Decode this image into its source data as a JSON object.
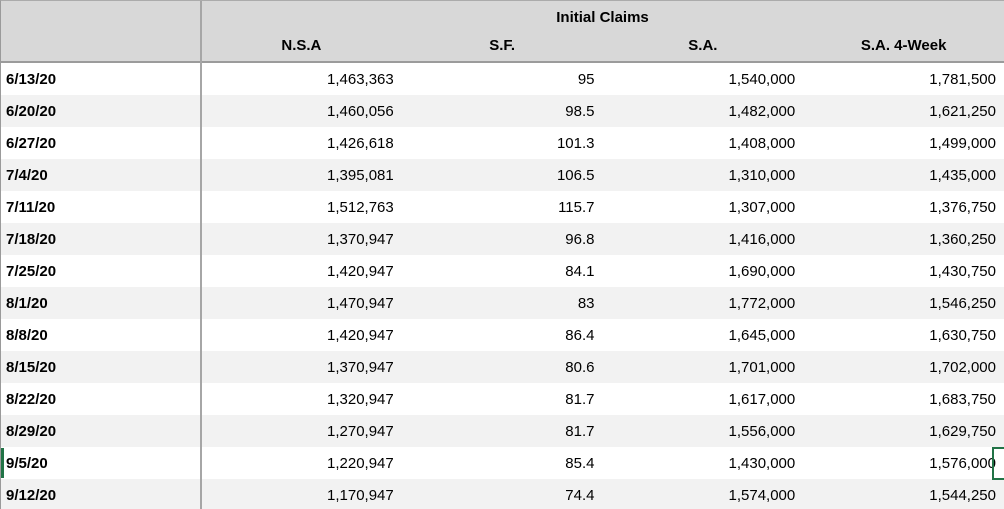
{
  "table": {
    "title": "Initial Claims",
    "date_column_header": "",
    "columns": [
      "N.S.A",
      "S.F.",
      "S.A.",
      "S.A. 4-Week"
    ],
    "rows": [
      {
        "date": "6/13/20",
        "nsa": "1,463,363",
        "sf": "95",
        "sa": "1,540,000",
        "sa4week": "1,781,500"
      },
      {
        "date": "6/20/20",
        "nsa": "1,460,056",
        "sf": "98.5",
        "sa": "1,482,000",
        "sa4week": "1,621,250"
      },
      {
        "date": "6/27/20",
        "nsa": "1,426,618",
        "sf": "101.3",
        "sa": "1,408,000",
        "sa4week": "1,499,000"
      },
      {
        "date": "7/4/20",
        "nsa": "1,395,081",
        "sf": "106.5",
        "sa": "1,310,000",
        "sa4week": "1,435,000"
      },
      {
        "date": "7/11/20",
        "nsa": "1,512,763",
        "sf": "115.7",
        "sa": "1,307,000",
        "sa4week": "1,376,750"
      },
      {
        "date": "7/18/20",
        "nsa": "1,370,947",
        "sf": "96.8",
        "sa": "1,416,000",
        "sa4week": "1,360,250"
      },
      {
        "date": "7/25/20",
        "nsa": "1,420,947",
        "sf": "84.1",
        "sa": "1,690,000",
        "sa4week": "1,430,750"
      },
      {
        "date": "8/1/20",
        "nsa": "1,470,947",
        "sf": "83",
        "sa": "1,772,000",
        "sa4week": "1,546,250"
      },
      {
        "date": "8/8/20",
        "nsa": "1,420,947",
        "sf": "86.4",
        "sa": "1,645,000",
        "sa4week": "1,630,750"
      },
      {
        "date": "8/15/20",
        "nsa": "1,370,947",
        "sf": "80.6",
        "sa": "1,701,000",
        "sa4week": "1,702,000"
      },
      {
        "date": "8/22/20",
        "nsa": "1,320,947",
        "sf": "81.7",
        "sa": "1,617,000",
        "sa4week": "1,683,750"
      },
      {
        "date": "8/29/20",
        "nsa": "1,270,947",
        "sf": "81.7",
        "sa": "1,556,000",
        "sa4week": "1,629,750"
      },
      {
        "date": "9/5/20",
        "nsa": "1,220,947",
        "sf": "85.4",
        "sa": "1,430,000",
        "sa4week": "1,576,000"
      },
      {
        "date": "9/12/20",
        "nsa": "1,170,947",
        "sf": "74.4",
        "sa": "1,574,000",
        "sa4week": "1,544,250"
      }
    ]
  },
  "selection": {
    "selected_row_date": "9/5/20",
    "note": "green cell-selection border cut off at right edge beside the S.A. 4-Week value of row 9/5/20"
  },
  "colors": {
    "header_bg": "#d8d8d8",
    "band": "#f2f2f2",
    "grid": "#a6a6a6",
    "selection_green": "#217346"
  }
}
